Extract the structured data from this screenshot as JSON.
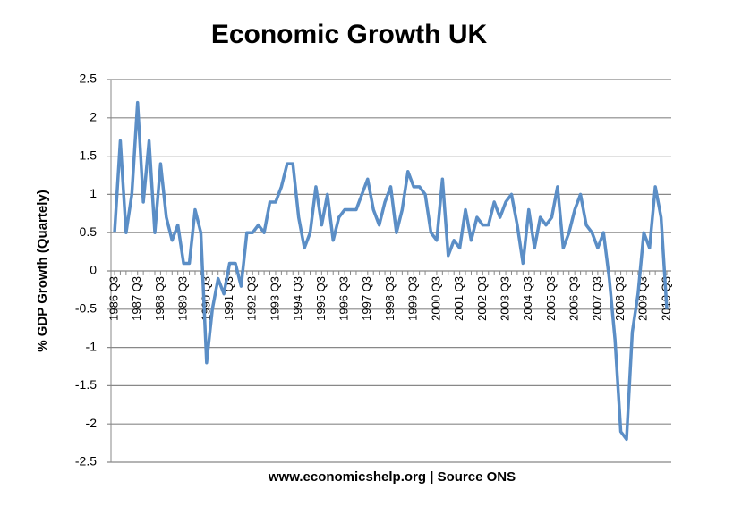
{
  "chart_data": {
    "type": "line",
    "title": "Economic Growth UK",
    "y_label": "% GDP Growth (Quartely)",
    "source": "www.economicshelp.org | Source ONS",
    "categories": [
      "1986 Q3",
      null,
      null,
      null,
      "1987 Q3",
      null,
      null,
      null,
      "1988 Q3",
      null,
      null,
      null,
      "1989 Q3",
      null,
      null,
      null,
      "1990 Q3",
      null,
      null,
      null,
      "1991 Q3",
      null,
      null,
      null,
      "1992 Q3",
      null,
      null,
      null,
      "1993 Q3",
      null,
      null,
      null,
      "1994 Q3",
      null,
      null,
      null,
      "1995 Q3",
      null,
      null,
      null,
      "1996 Q3",
      null,
      null,
      null,
      "1997 Q3",
      null,
      null,
      null,
      "1998 Q3",
      null,
      null,
      null,
      "1999 Q3",
      null,
      null,
      null,
      "2000 Q3",
      null,
      null,
      null,
      "2001 Q3",
      null,
      null,
      null,
      "2002 Q3",
      null,
      null,
      null,
      "2003 Q3",
      null,
      null,
      null,
      "2004 Q3",
      null,
      null,
      null,
      "2005 Q3",
      null,
      null,
      null,
      "2006 Q3",
      null,
      null,
      null,
      "2007 Q3",
      null,
      null,
      null,
      "2008 Q3",
      null,
      null,
      null,
      "2009 Q3",
      null,
      null,
      null,
      "2010 Q3"
    ],
    "values": [
      0.5,
      1.7,
      0.5,
      1.0,
      2.2,
      0.9,
      1.7,
      0.5,
      1.4,
      0.7,
      0.4,
      0.6,
      0.1,
      0.1,
      0.8,
      0.5,
      -1.2,
      -0.5,
      -0.1,
      -0.3,
      0.1,
      0.1,
      -0.2,
      0.5,
      0.5,
      0.6,
      0.5,
      0.9,
      0.9,
      1.1,
      1.4,
      1.4,
      0.7,
      0.3,
      0.5,
      1.1,
      0.6,
      1.0,
      0.4,
      0.7,
      0.8,
      0.8,
      0.8,
      1.0,
      1.2,
      0.8,
      0.6,
      0.9,
      1.1,
      0.5,
      0.8,
      1.3,
      1.1,
      1.1,
      1.0,
      0.5,
      0.4,
      1.2,
      0.2,
      0.4,
      0.3,
      0.8,
      0.4,
      0.7,
      0.6,
      0.6,
      0.9,
      0.7,
      0.9,
      1.0,
      0.6,
      0.1,
      0.8,
      0.3,
      0.7,
      0.6,
      0.7,
      1.1,
      0.3,
      0.5,
      0.8,
      1.0,
      0.6,
      0.5,
      0.3,
      0.5,
      -0.1,
      -0.9,
      -2.1,
      -2.2,
      -0.8,
      -0.3,
      0.5,
      0.3,
      1.1,
      0.7,
      -0.5
    ],
    "color": "#5b8ec6",
    "ylim": [
      -2.5,
      2.5
    ],
    "yticks": [
      -2.5,
      -2,
      -1.5,
      -1,
      -0.5,
      0,
      0.5,
      1,
      1.5,
      2,
      2.5
    ],
    "grid": true
  }
}
